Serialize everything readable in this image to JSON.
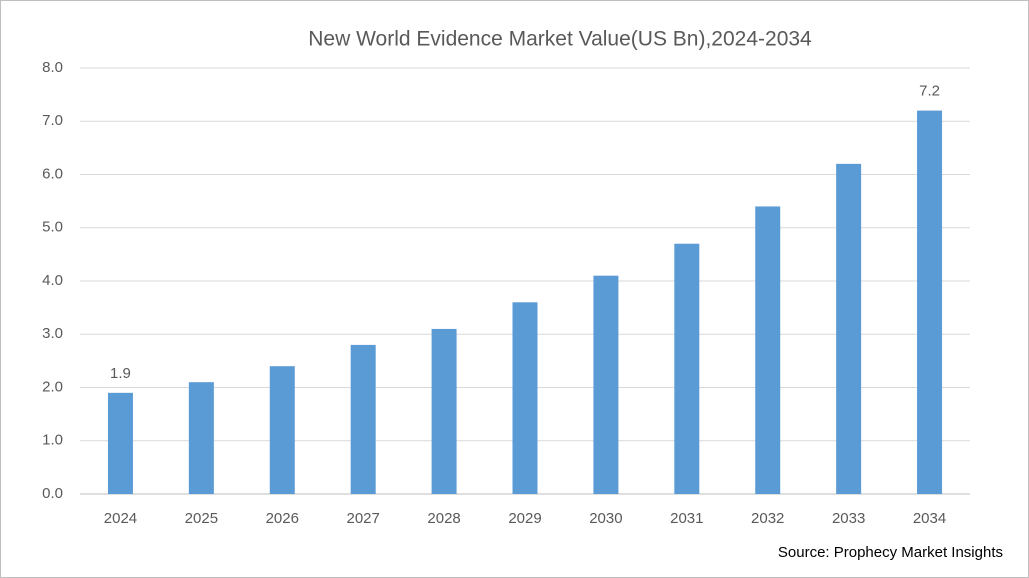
{
  "chart_data": {
    "type": "bar",
    "title": "New  World Evidence Market Value(US Bn),2024-2034",
    "source": "Source: Prophecy Market Insights",
    "categories": [
      "2024",
      "2025",
      "2026",
      "2027",
      "2028",
      "2029",
      "2030",
      "2031",
      "2032",
      "2033",
      "2034"
    ],
    "values": [
      1.9,
      2.1,
      2.4,
      2.8,
      3.1,
      3.6,
      4.1,
      4.7,
      5.4,
      6.2,
      7.2
    ],
    "value_labels": [
      "1.9",
      null,
      null,
      null,
      null,
      null,
      null,
      null,
      null,
      null,
      "7.2"
    ],
    "color": "#5b9bd5",
    "ylim": [
      0,
      8
    ],
    "yticks": [
      {
        "value": 0,
        "label": "0.0"
      },
      {
        "value": 1,
        "label": "1.0"
      },
      {
        "value": 2,
        "label": "2.0"
      },
      {
        "value": 3,
        "label": "3.0"
      },
      {
        "value": 4,
        "label": "4.0"
      },
      {
        "value": 5,
        "label": "5.0"
      },
      {
        "value": 6,
        "label": "6.0"
      },
      {
        "value": 7,
        "label": "7.0"
      },
      {
        "value": 8,
        "label": "8.0"
      }
    ],
    "grid": true
  }
}
